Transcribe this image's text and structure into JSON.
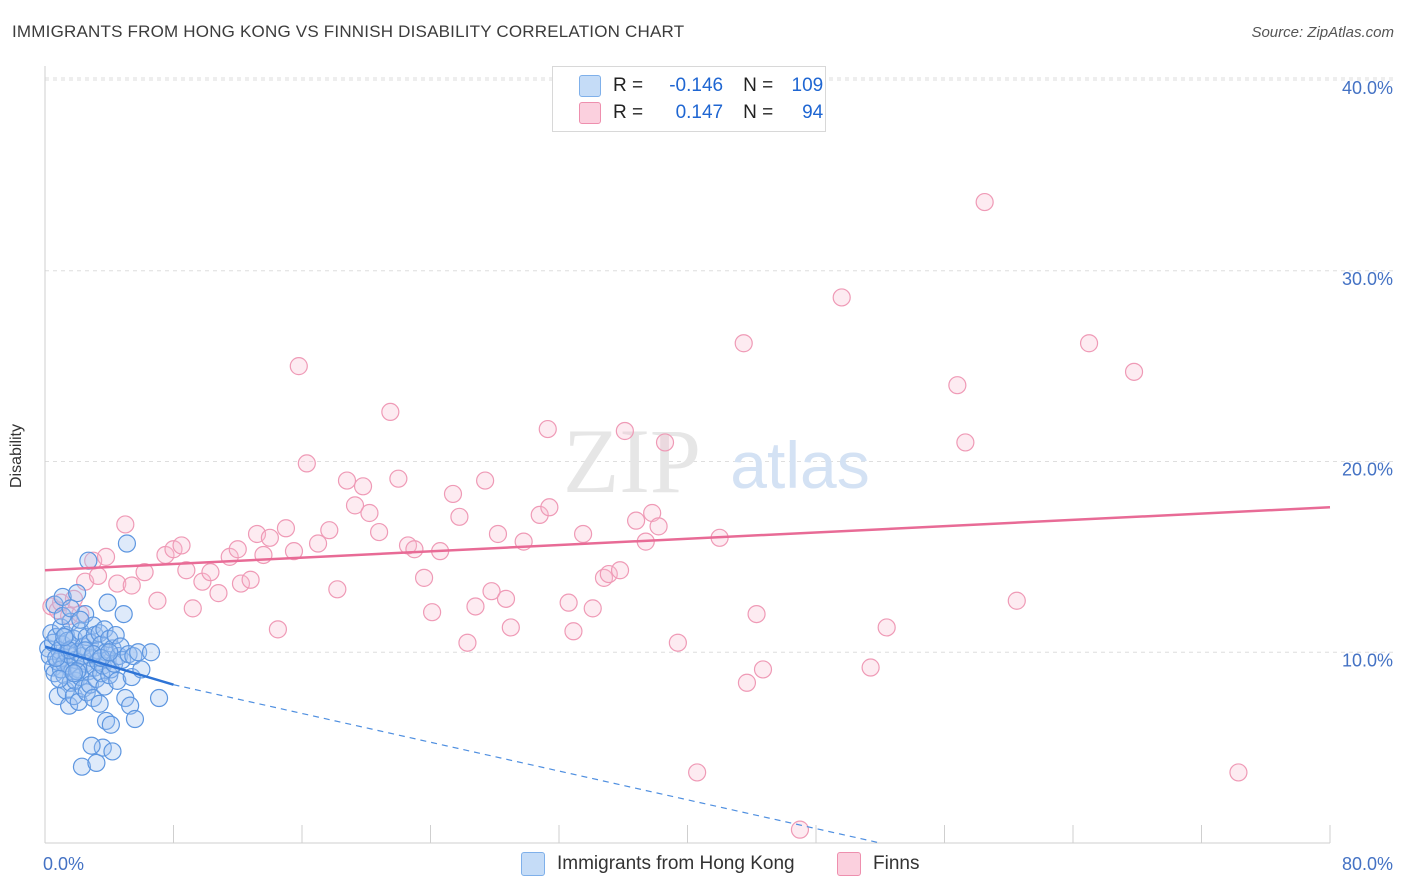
{
  "title": "IMMIGRANTS FROM HONG KONG VS FINNISH DISABILITY CORRELATION CHART",
  "source": "Source: ZipAtlas.com",
  "watermark": {
    "zip": "ZIP",
    "atlas": "atlas"
  },
  "legend": {
    "series1": {
      "r_label": "R =",
      "r_value": "-0.146",
      "n_label": "N =",
      "n_value": "109",
      "color": "#7fb0ea",
      "fill": "#c5dcf7"
    },
    "series2": {
      "r_label": "R =",
      "r_value": "0.147",
      "n_label": "N =",
      "n_value": "94",
      "color": "#ee8fae",
      "fill": "#fbd0de"
    }
  },
  "bottom_legend": {
    "series1": "Immigrants from Hong Kong",
    "series2": "Finns"
  },
  "chart_data": {
    "type": "scatter",
    "title": "IMMIGRANTS FROM HONG KONG VS FINNISH DISABILITY CORRELATION CHART",
    "xlabel": "",
    "ylabel": "Disability",
    "xlim": [
      0,
      80
    ],
    "ylim": [
      0,
      40
    ],
    "x_tick_labels": [
      "0.0%",
      "80.0%"
    ],
    "y_ticks": [
      10,
      20,
      30,
      40
    ],
    "y_tick_labels": [
      "10.0%",
      "20.0%",
      "30.0%",
      "40.0%"
    ],
    "grid": true,
    "series": [
      {
        "name": "Immigrants from Hong Kong",
        "color": "#4f8fe0",
        "trend": {
          "x0": 0,
          "y0": 10.3,
          "x1": 8,
          "y1": 8.3,
          "dashed_to_x": 52,
          "dashed_to_y": 0
        },
        "points": [
          [
            0.2,
            10.2
          ],
          [
            0.3,
            9.8
          ],
          [
            0.4,
            11.0
          ],
          [
            0.5,
            10.5
          ],
          [
            0.5,
            9.2
          ],
          [
            0.6,
            12.5
          ],
          [
            0.6,
            8.9
          ],
          [
            0.7,
            10.8
          ],
          [
            0.8,
            9.5
          ],
          [
            0.8,
            7.7
          ],
          [
            0.9,
            10.1
          ],
          [
            1.0,
            11.3
          ],
          [
            1.0,
            9.7
          ],
          [
            1.1,
            12.9
          ],
          [
            1.1,
            10.4
          ],
          [
            1.2,
            8.8
          ],
          [
            1.2,
            9.4
          ],
          [
            1.3,
            10.9
          ],
          [
            1.3,
            8.0
          ],
          [
            1.4,
            9.9
          ],
          [
            1.4,
            10.6
          ],
          [
            1.5,
            7.2
          ],
          [
            1.5,
            9.3
          ],
          [
            1.6,
            11.6
          ],
          [
            1.6,
            8.4
          ],
          [
            1.7,
            10.2
          ],
          [
            1.7,
            9.0
          ],
          [
            1.8,
            7.7
          ],
          [
            1.8,
            10.7
          ],
          [
            1.9,
            9.6
          ],
          [
            1.9,
            8.5
          ],
          [
            2.0,
            13.1
          ],
          [
            2.0,
            10.0
          ],
          [
            2.1,
            9.1
          ],
          [
            2.1,
            7.4
          ],
          [
            2.2,
            11.1
          ],
          [
            2.2,
            8.7
          ],
          [
            2.3,
            9.8
          ],
          [
            2.3,
            4.0
          ],
          [
            2.4,
            10.3
          ],
          [
            2.4,
            8.1
          ],
          [
            2.5,
            9.4
          ],
          [
            2.5,
            12.0
          ],
          [
            2.6,
            10.8
          ],
          [
            2.6,
            7.9
          ],
          [
            2.7,
            9.0
          ],
          [
            2.7,
            14.8
          ],
          [
            2.8,
            10.5
          ],
          [
            2.8,
            8.3
          ],
          [
            2.9,
            9.7
          ],
          [
            3.0,
            11.4
          ],
          [
            3.0,
            7.6
          ],
          [
            3.1,
            9.2
          ],
          [
            3.1,
            10.9
          ],
          [
            3.2,
            8.6
          ],
          [
            3.2,
            4.2
          ],
          [
            3.3,
            10.1
          ],
          [
            3.3,
            9.5
          ],
          [
            3.4,
            7.3
          ],
          [
            3.4,
            11.0
          ],
          [
            3.5,
            8.9
          ],
          [
            3.5,
            10.4
          ],
          [
            3.6,
            9.3
          ],
          [
            3.6,
            5.0
          ],
          [
            3.7,
            11.2
          ],
          [
            3.7,
            8.2
          ],
          [
            3.8,
            10.0
          ],
          [
            3.8,
            6.4
          ],
          [
            3.9,
            9.6
          ],
          [
            3.9,
            12.6
          ],
          [
            4.0,
            10.7
          ],
          [
            4.0,
            8.8
          ],
          [
            4.1,
            9.1
          ],
          [
            4.1,
            6.2
          ],
          [
            4.2,
            10.2
          ],
          [
            4.2,
            4.8
          ],
          [
            4.3,
            9.4
          ],
          [
            4.4,
            10.9
          ],
          [
            4.5,
            8.5
          ],
          [
            4.6,
            9.8
          ],
          [
            4.7,
            10.3
          ],
          [
            4.8,
            9.6
          ],
          [
            4.9,
            12.0
          ],
          [
            5.0,
            7.6
          ],
          [
            5.1,
            15.7
          ],
          [
            5.2,
            9.9
          ],
          [
            5.3,
            7.2
          ],
          [
            5.4,
            8.7
          ],
          [
            5.5,
            9.8
          ],
          [
            5.6,
            6.5
          ],
          [
            5.8,
            10.0
          ],
          [
            6.0,
            9.1
          ],
          [
            2.9,
            5.1
          ],
          [
            1.0,
            9.1
          ],
          [
            1.5,
            10.1
          ],
          [
            2.0,
            9.0
          ],
          [
            0.9,
            8.6
          ],
          [
            1.2,
            10.8
          ],
          [
            1.8,
            8.9
          ],
          [
            2.5,
            10.1
          ],
          [
            3.0,
            9.9
          ],
          [
            3.5,
            9.7
          ],
          [
            4.0,
            10.0
          ],
          [
            1.1,
            11.9
          ],
          [
            1.6,
            12.3
          ],
          [
            2.2,
            11.7
          ],
          [
            6.6,
            10.0
          ],
          [
            7.1,
            7.6
          ],
          [
            0.7,
            9.7
          ]
        ]
      },
      {
        "name": "Finns",
        "color": "#ec8fae",
        "trend": {
          "x0": 0,
          "y0": 14.3,
          "x1": 80,
          "y1": 17.6
        },
        "points": [
          [
            0.4,
            12.4
          ],
          [
            0.8,
            12.2
          ],
          [
            1.0,
            12.6
          ],
          [
            1.5,
            11.9
          ],
          [
            1.8,
            12.8
          ],
          [
            2.2,
            12.0
          ],
          [
            2.5,
            13.7
          ],
          [
            3.0,
            14.8
          ],
          [
            3.3,
            14.0
          ],
          [
            3.8,
            15.0
          ],
          [
            4.5,
            13.6
          ],
          [
            5.0,
            16.7
          ],
          [
            5.4,
            13.5
          ],
          [
            6.2,
            14.2
          ],
          [
            7.0,
            12.7
          ],
          [
            7.5,
            15.1
          ],
          [
            8.0,
            15.4
          ],
          [
            8.5,
            15.6
          ],
          [
            8.8,
            14.3
          ],
          [
            9.2,
            12.3
          ],
          [
            9.8,
            13.7
          ],
          [
            10.3,
            14.2
          ],
          [
            10.8,
            13.1
          ],
          [
            11.5,
            15.0
          ],
          [
            12.0,
            15.4
          ],
          [
            12.2,
            13.6
          ],
          [
            12.8,
            13.8
          ],
          [
            13.2,
            16.2
          ],
          [
            13.6,
            15.1
          ],
          [
            14.0,
            16.0
          ],
          [
            14.5,
            11.2
          ],
          [
            15.0,
            16.5
          ],
          [
            15.5,
            15.3
          ],
          [
            15.8,
            25.0
          ],
          [
            16.3,
            19.9
          ],
          [
            17.0,
            15.7
          ],
          [
            17.7,
            16.4
          ],
          [
            18.2,
            13.3
          ],
          [
            18.8,
            19.0
          ],
          [
            19.3,
            17.7
          ],
          [
            19.8,
            18.7
          ],
          [
            20.2,
            17.3
          ],
          [
            20.8,
            16.3
          ],
          [
            21.5,
            22.6
          ],
          [
            22.0,
            19.1
          ],
          [
            22.6,
            15.6
          ],
          [
            23.0,
            15.4
          ],
          [
            23.6,
            13.9
          ],
          [
            24.1,
            12.1
          ],
          [
            24.6,
            15.3
          ],
          [
            25.4,
            18.3
          ],
          [
            25.8,
            17.1
          ],
          [
            26.3,
            10.5
          ],
          [
            26.8,
            12.4
          ],
          [
            27.4,
            19.0
          ],
          [
            27.8,
            13.2
          ],
          [
            28.2,
            16.2
          ],
          [
            28.7,
            12.8
          ],
          [
            29.0,
            11.3
          ],
          [
            29.8,
            15.8
          ],
          [
            30.8,
            17.2
          ],
          [
            31.3,
            21.7
          ],
          [
            31.4,
            17.6
          ],
          [
            32.6,
            12.6
          ],
          [
            32.9,
            11.1
          ],
          [
            33.5,
            16.2
          ],
          [
            34.1,
            12.3
          ],
          [
            34.8,
            13.9
          ],
          [
            35.1,
            14.1
          ],
          [
            35.8,
            14.3
          ],
          [
            36.1,
            21.6
          ],
          [
            36.8,
            16.9
          ],
          [
            37.4,
            15.8
          ],
          [
            37.8,
            17.3
          ],
          [
            38.2,
            16.6
          ],
          [
            38.6,
            21.0
          ],
          [
            39.4,
            10.5
          ],
          [
            40.6,
            3.7
          ],
          [
            42.0,
            16.0
          ],
          [
            43.5,
            26.2
          ],
          [
            43.7,
            8.4
          ],
          [
            44.3,
            12.0
          ],
          [
            44.7,
            9.1
          ],
          [
            47.0,
            0.7
          ],
          [
            49.6,
            28.6
          ],
          [
            51.4,
            9.2
          ],
          [
            52.4,
            11.3
          ],
          [
            56.8,
            24.0
          ],
          [
            57.3,
            21.0
          ],
          [
            58.5,
            33.6
          ],
          [
            60.5,
            12.7
          ],
          [
            65.0,
            26.2
          ],
          [
            67.8,
            24.7
          ],
          [
            74.3,
            3.7
          ]
        ]
      }
    ]
  }
}
